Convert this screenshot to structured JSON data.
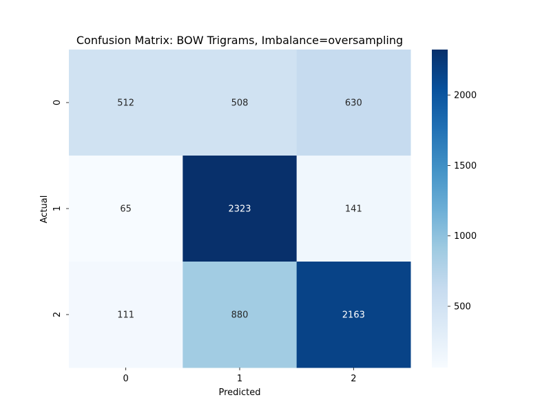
{
  "chart_data": {
    "type": "heatmap",
    "title": "Confusion Matrix: BOW Trigrams, Imbalance=oversampling",
    "xlabel": "Predicted",
    "ylabel": "Actual",
    "x_categories": [
      "0",
      "1",
      "2"
    ],
    "y_categories": [
      "0",
      "1",
      "2"
    ],
    "values": [
      [
        512,
        508,
        630
      ],
      [
        65,
        2323,
        141
      ],
      [
        111,
        880,
        2163
      ]
    ],
    "colormap": "Blues",
    "color_range": [
      65,
      2323
    ],
    "colorbar_ticks": [
      500,
      1000,
      1500,
      2000
    ],
    "light_text_color": "#ffffff",
    "dark_text_color": "#262626"
  }
}
